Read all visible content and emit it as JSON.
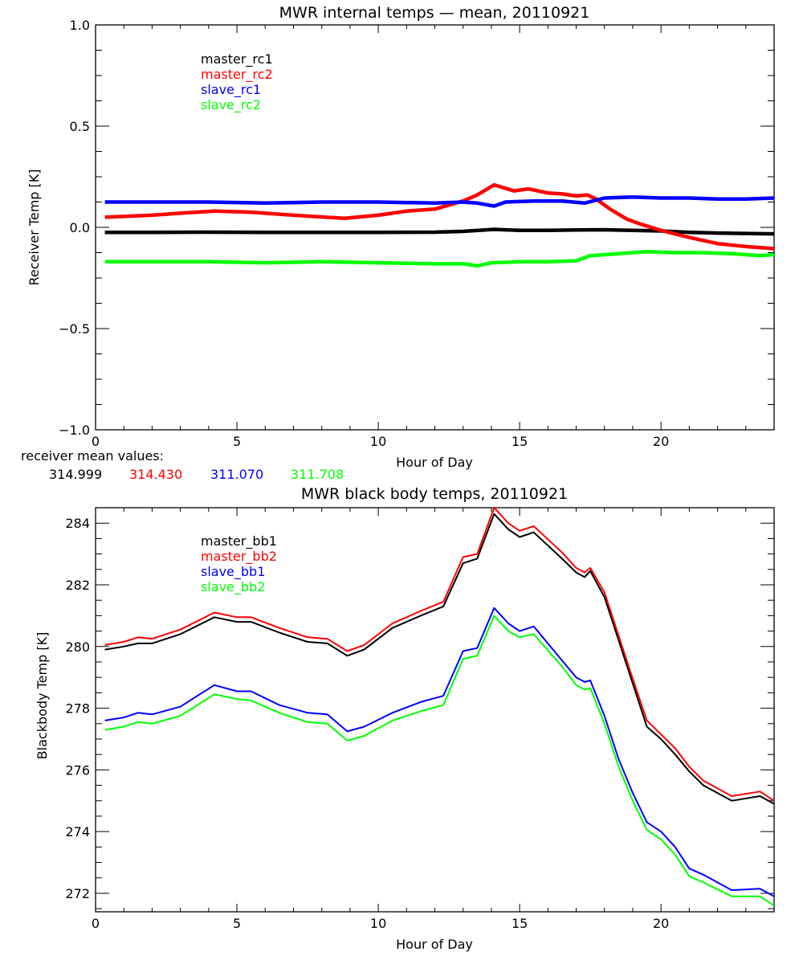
{
  "chart_data": [
    {
      "type": "line",
      "title": "MWR internal temps — mean, 20110921",
      "xlabel": "Hour of Day",
      "ylabel": "Receiver Temp [K]",
      "xlim": [
        0,
        24
      ],
      "ylim": [
        -1.0,
        1.0
      ],
      "xticks": [
        0,
        5,
        10,
        15,
        20
      ],
      "xtick_labels": [
        "0",
        "5",
        "10",
        "15",
        "20"
      ],
      "yticks": [
        -1.0,
        -0.5,
        0.0,
        0.5,
        1.0
      ],
      "ytick_labels": [
        "−1.0",
        "−0.5",
        "0.0",
        "0.5",
        "1.0"
      ],
      "grid": false,
      "legend_position": "top-left",
      "series": [
        {
          "name": "master_rc1",
          "color": "#000000",
          "x": [
            0.33,
            2,
            4,
            6,
            8,
            10,
            12,
            13,
            14.1,
            15,
            16,
            17,
            18,
            19,
            20,
            21,
            22,
            23,
            24
          ],
          "y": [
            -0.025,
            -0.025,
            -0.024,
            -0.025,
            -0.025,
            -0.025,
            -0.024,
            -0.02,
            -0.01,
            -0.015,
            -0.015,
            -0.013,
            -0.012,
            -0.015,
            -0.018,
            -0.025,
            -0.028,
            -0.03,
            -0.032
          ]
        },
        {
          "name": "master_rc2",
          "color": "#ff0000",
          "x": [
            0.33,
            2,
            3,
            4.2,
            5.5,
            7,
            8.8,
            10,
            11,
            12,
            13,
            13.5,
            14.1,
            14.8,
            15.3,
            16,
            16.5,
            17,
            17.4,
            17.7,
            18.2,
            18.8,
            19.3,
            20,
            21,
            22,
            23,
            24
          ],
          "y": [
            0.05,
            0.06,
            0.07,
            0.08,
            0.075,
            0.06,
            0.045,
            0.06,
            0.08,
            0.09,
            0.13,
            0.16,
            0.21,
            0.18,
            0.19,
            0.17,
            0.165,
            0.155,
            0.16,
            0.14,
            0.09,
            0.04,
            0.015,
            -0.015,
            -0.05,
            -0.08,
            -0.095,
            -0.105
          ]
        },
        {
          "name": "slave_rc1",
          "color": "#0000ff",
          "x": [
            0.33,
            2,
            4,
            6,
            8,
            10,
            12,
            13,
            13.5,
            14.1,
            14.5,
            15.5,
            16.5,
            17.3,
            18,
            19,
            20,
            21,
            22,
            23,
            24
          ],
          "y": [
            0.125,
            0.125,
            0.125,
            0.12,
            0.125,
            0.125,
            0.12,
            0.125,
            0.12,
            0.105,
            0.125,
            0.13,
            0.13,
            0.12,
            0.145,
            0.15,
            0.145,
            0.145,
            0.14,
            0.14,
            0.145
          ]
        },
        {
          "name": "slave_rc2",
          "color": "#00ff00",
          "x": [
            0.33,
            2,
            4,
            6,
            8,
            10,
            12,
            13,
            13.5,
            14,
            15,
            16,
            17,
            17.5,
            18.5,
            19.5,
            20.5,
            21.5,
            22.5,
            23.5,
            24
          ],
          "y": [
            -0.17,
            -0.17,
            -0.17,
            -0.175,
            -0.17,
            -0.175,
            -0.18,
            -0.18,
            -0.19,
            -0.175,
            -0.17,
            -0.17,
            -0.165,
            -0.14,
            -0.13,
            -0.12,
            -0.125,
            -0.125,
            -0.13,
            -0.14,
            -0.135
          ]
        }
      ]
    },
    {
      "type": "line",
      "title": "MWR black body temps, 20110921",
      "xlabel": "Hour of Day",
      "ylabel": "Blackbody Temp [K]",
      "xlim": [
        0,
        24
      ],
      "ylim": [
        271.4,
        284.5
      ],
      "xticks": [
        0,
        5,
        10,
        15,
        20
      ],
      "xtick_labels": [
        "0",
        "5",
        "10",
        "15",
        "20"
      ],
      "yticks": [
        272,
        274,
        276,
        278,
        280,
        282,
        284
      ],
      "ytick_labels": [
        "272",
        "274",
        "276",
        "278",
        "280",
        "282",
        "284"
      ],
      "grid": false,
      "legend_position": "top-left",
      "series": [
        {
          "name": "master_bb1",
          "color": "#000000",
          "x": [
            0.33,
            1,
            1.5,
            2,
            3,
            4.2,
            5,
            5.5,
            6.5,
            7.5,
            8.2,
            8.9,
            9.5,
            10.5,
            11.5,
            12.3,
            13,
            13.5,
            14.1,
            14.6,
            15,
            15.5,
            16.5,
            17,
            17.3,
            17.5,
            18,
            18.5,
            19,
            19.5,
            20,
            20.5,
            21,
            21.5,
            22.5,
            23.5,
            24
          ],
          "y": [
            279.9,
            280.0,
            280.1,
            280.1,
            280.4,
            280.95,
            280.8,
            280.8,
            280.45,
            280.15,
            280.1,
            279.7,
            279.9,
            280.6,
            281.0,
            281.3,
            282.7,
            282.85,
            284.3,
            283.8,
            283.55,
            283.7,
            282.85,
            282.4,
            282.25,
            282.45,
            281.6,
            280.2,
            278.8,
            277.4,
            277.0,
            276.5,
            275.95,
            275.5,
            275.0,
            275.15,
            274.9
          ]
        },
        {
          "name": "master_bb2",
          "color": "#ff0000",
          "x": [
            0.33,
            1,
            1.5,
            2,
            3,
            4.2,
            5,
            5.5,
            6.5,
            7.5,
            8.2,
            8.9,
            9.5,
            10.5,
            11.5,
            12.3,
            13,
            13.5,
            14.1,
            14.6,
            15,
            15.5,
            16.5,
            17,
            17.3,
            17.5,
            18,
            18.5,
            19,
            19.5,
            20,
            20.5,
            21,
            21.5,
            22.5,
            23.5,
            24
          ],
          "y": [
            280.05,
            280.15,
            280.3,
            280.25,
            280.55,
            281.1,
            280.95,
            280.95,
            280.6,
            280.3,
            280.25,
            279.85,
            280.05,
            280.75,
            281.15,
            281.45,
            282.9,
            283.0,
            284.5,
            284.0,
            283.75,
            283.9,
            283.05,
            282.55,
            282.4,
            282.55,
            281.75,
            280.35,
            278.95,
            277.6,
            277.15,
            276.7,
            276.1,
            275.65,
            275.15,
            275.3,
            275.0
          ]
        },
        {
          "name": "slave_bb1",
          "color": "#0000ff",
          "x": [
            0.33,
            1,
            1.5,
            2,
            3,
            4.2,
            5,
            5.5,
            6.5,
            7.5,
            8.2,
            8.9,
            9.5,
            10.5,
            11.5,
            12.3,
            13,
            13.5,
            14.1,
            14.6,
            15,
            15.5,
            16.5,
            17,
            17.3,
            17.5,
            18,
            18.5,
            19,
            19.5,
            20,
            20.5,
            21,
            21.5,
            22.5,
            23.5,
            24
          ],
          "y": [
            277.6,
            277.7,
            277.85,
            277.8,
            278.05,
            278.75,
            278.55,
            278.55,
            278.1,
            277.85,
            277.8,
            277.25,
            277.4,
            277.85,
            278.2,
            278.4,
            279.85,
            279.95,
            281.25,
            280.75,
            280.5,
            280.65,
            279.55,
            279.0,
            278.85,
            278.9,
            277.75,
            276.35,
            275.25,
            274.3,
            274.0,
            273.5,
            272.8,
            272.6,
            272.1,
            272.15,
            271.9
          ]
        },
        {
          "name": "slave_bb2",
          "color": "#00ff00",
          "x": [
            0.33,
            1,
            1.5,
            2,
            3,
            4.2,
            5,
            5.5,
            6.5,
            7.5,
            8.2,
            8.9,
            9.5,
            10.5,
            11.5,
            12.3,
            13,
            13.5,
            14.1,
            14.6,
            15,
            15.5,
            16.5,
            17,
            17.3,
            17.5,
            18,
            18.5,
            19,
            19.5,
            20,
            20.5,
            21,
            21.5,
            22.5,
            23.5,
            24
          ],
          "y": [
            277.3,
            277.4,
            277.55,
            277.5,
            277.75,
            278.45,
            278.3,
            278.25,
            277.85,
            277.55,
            277.5,
            276.95,
            277.1,
            277.6,
            277.9,
            278.1,
            279.6,
            279.7,
            281.0,
            280.5,
            280.3,
            280.4,
            279.35,
            278.75,
            278.6,
            278.65,
            277.5,
            276.1,
            275.0,
            274.05,
            273.75,
            273.25,
            272.55,
            272.35,
            271.9,
            271.9,
            271.6
          ]
        }
      ]
    }
  ],
  "receiver_mean": {
    "label": "receiver mean values:",
    "values": [
      {
        "text": "314.999",
        "color": "#000000"
      },
      {
        "text": "314.430",
        "color": "#ff0000"
      },
      {
        "text": "311.070",
        "color": "#0000ff"
      },
      {
        "text": "311.708",
        "color": "#00ff00"
      }
    ]
  }
}
